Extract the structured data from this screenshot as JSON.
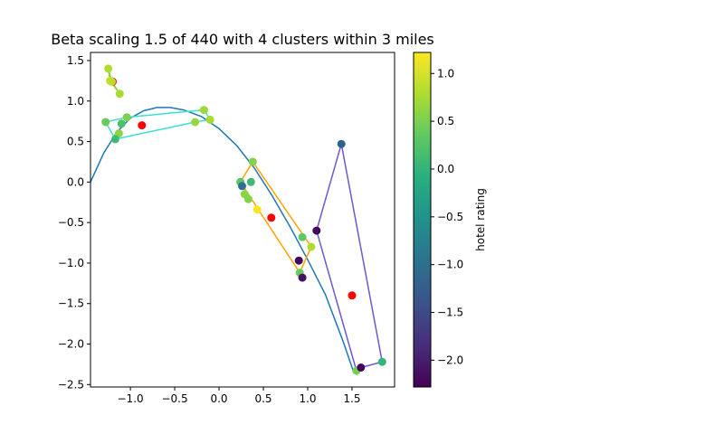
{
  "chart_data": {
    "type": "scatter",
    "title": "Beta scaling 1.5 of 440 with 4 clusters within 3 miles",
    "xlim": [
      -1.45,
      1.98
    ],
    "ylim": [
      -2.53,
      1.6
    ],
    "x_ticks": [
      -1.0,
      -0.5,
      0.0,
      0.5,
      1.0,
      1.5
    ],
    "x_tick_labels": [
      "−1.0",
      "−0.5",
      "0.0",
      "0.5",
      "1.0",
      "1.5"
    ],
    "y_ticks": [
      1.5,
      1.0,
      0.5,
      0.0,
      -0.5,
      -1.0,
      -1.5,
      -2.0,
      -2.5
    ],
    "y_tick_labels": [
      "1.5",
      "1.0",
      "0.5",
      "0.0",
      "−0.5",
      "−1.0",
      "−1.5",
      "−2.0",
      "−2.5"
    ],
    "grid": false,
    "colorbar": {
      "label": "hotel rating",
      "colormap": "viridis",
      "min": -2.28,
      "max": 1.22,
      "ticks": [
        1.0,
        0.5,
        0.0,
        -0.5,
        -1.0,
        -1.5,
        -2.0
      ],
      "tick_labels": [
        "1.0",
        "0.5",
        "0.0",
        "−0.5",
        "−1.0",
        "−1.5",
        "−2.0"
      ]
    },
    "curve": {
      "color": "#1f77b4",
      "x": [
        -1.45,
        -1.3,
        -1.15,
        -1.0,
        -0.85,
        -0.7,
        -0.55,
        -0.4,
        -0.2,
        0.0,
        0.2,
        0.4,
        0.6,
        0.8,
        1.0,
        1.2,
        1.4,
        1.52
      ],
      "y": [
        0.0,
        0.36,
        0.62,
        0.79,
        0.88,
        0.92,
        0.92,
        0.89,
        0.81,
        0.66,
        0.45,
        0.17,
        -0.17,
        -0.55,
        -0.96,
        -1.39,
        -1.97,
        -2.35
      ]
    },
    "points": [
      {
        "x": -1.25,
        "y": 1.4,
        "rating": 0.8
      },
      {
        "x": -1.23,
        "y": 1.25,
        "rating": 0.9
      },
      {
        "x": -1.21,
        "y": 1.24,
        "rating": 0.85
      },
      {
        "x": -1.12,
        "y": 1.09,
        "rating": 0.75
      },
      {
        "x": -1.28,
        "y": 0.74,
        "rating": 0.4
      },
      {
        "x": -1.1,
        "y": 0.72,
        "rating": 0.2
      },
      {
        "x": -1.04,
        "y": 0.8,
        "rating": 0.5
      },
      {
        "x": -1.13,
        "y": 0.6,
        "rating": 0.6
      },
      {
        "x": -1.17,
        "y": 0.53,
        "rating": 0.1
      },
      {
        "x": -0.27,
        "y": 0.74,
        "rating": 0.65
      },
      {
        "x": -0.17,
        "y": 0.89,
        "rating": 0.7
      },
      {
        "x": -0.1,
        "y": 0.77,
        "rating": 0.75
      },
      {
        "x": 0.38,
        "y": 0.25,
        "rating": 0.55
      },
      {
        "x": 0.24,
        "y": 0.0,
        "rating": 0.3
      },
      {
        "x": 0.36,
        "y": 0.0,
        "rating": 0.1
      },
      {
        "x": 0.26,
        "y": -0.05,
        "rating": -1.0
      },
      {
        "x": 0.29,
        "y": -0.15,
        "rating": 0.6
      },
      {
        "x": 0.33,
        "y": -0.21,
        "rating": 0.55
      },
      {
        "x": 0.43,
        "y": -0.34,
        "rating": 1.2
      },
      {
        "x": 0.94,
        "y": -0.68,
        "rating": 0.35
      },
      {
        "x": 1.04,
        "y": -0.8,
        "rating": 0.8
      },
      {
        "x": 0.9,
        "y": -0.97,
        "rating": -2.2
      },
      {
        "x": 0.91,
        "y": -1.12,
        "rating": 0.4
      },
      {
        "x": 0.94,
        "y": -1.18,
        "rating": -2.1
      },
      {
        "x": 1.1,
        "y": -0.6,
        "rating": -2.2
      },
      {
        "x": 1.38,
        "y": 0.47,
        "rating": -1.2
      },
      {
        "x": 1.55,
        "y": -2.33,
        "rating": 0.45
      },
      {
        "x": 1.6,
        "y": -2.29,
        "rating": -2.25
      },
      {
        "x": 1.84,
        "y": -2.22,
        "rating": 0.0
      }
    ],
    "centroids": [
      {
        "x": -1.2,
        "y": 1.24
      },
      {
        "x": -0.87,
        "y": 0.7
      },
      {
        "x": 0.59,
        "y": -0.44
      },
      {
        "x": 1.5,
        "y": -1.4
      }
    ],
    "hulls": [
      {
        "color": "#9ACD32",
        "points": [
          [
            -1.25,
            1.4
          ],
          [
            -1.21,
            1.24
          ],
          [
            -1.12,
            1.09
          ],
          [
            -1.23,
            1.25
          ],
          [
            -1.25,
            1.4
          ]
        ]
      },
      {
        "color": "#40E0D0",
        "points": [
          [
            -1.28,
            0.74
          ],
          [
            -1.17,
            0.53
          ],
          [
            -0.27,
            0.74
          ],
          [
            -0.1,
            0.77
          ],
          [
            -0.17,
            0.89
          ],
          [
            -1.04,
            0.8
          ],
          [
            -1.28,
            0.74
          ]
        ]
      },
      {
        "color": "#FFA500",
        "points": [
          [
            0.24,
            0.0
          ],
          [
            0.38,
            0.25
          ],
          [
            1.04,
            -0.8
          ],
          [
            0.91,
            -1.12
          ],
          [
            0.24,
            0.0
          ]
        ]
      },
      {
        "color": "#6A5ACD",
        "points": [
          [
            1.1,
            -0.6
          ],
          [
            1.38,
            0.47
          ],
          [
            1.84,
            -2.22
          ],
          [
            1.6,
            -2.29
          ],
          [
            1.55,
            -2.33
          ],
          [
            1.1,
            -0.6
          ]
        ]
      }
    ]
  }
}
